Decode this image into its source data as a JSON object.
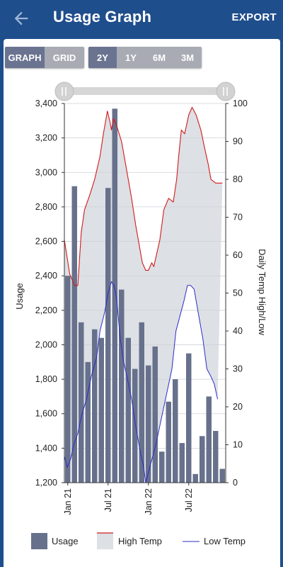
{
  "appbar": {
    "title": "Usage Graph",
    "export_label": "EXPORT",
    "back_icon": "arrow-left-icon"
  },
  "view_toggle": {
    "options": [
      "GRAPH",
      "GRID"
    ],
    "selected": "GRAPH"
  },
  "range_toggle": {
    "options": [
      "2Y",
      "1Y",
      "6M",
      "3M"
    ],
    "selected": "2Y"
  },
  "range_slider": {
    "start_fraction": 0.0,
    "end_fraction": 1.0
  },
  "chart_data": {
    "type": "bar",
    "ylabel": "Usage",
    "y2label": "Daily Temp High/Low",
    "ylim": [
      1200,
      3400
    ],
    "y2lim": [
      0,
      100
    ],
    "yticks": [
      "1,200",
      "1,400",
      "1,600",
      "1,800",
      "2,000",
      "2,200",
      "2,400",
      "2,600",
      "2,800",
      "3,000",
      "3,200",
      "3,400"
    ],
    "y2ticks": [
      "0",
      "10",
      "20",
      "30",
      "40",
      "50",
      "60",
      "70",
      "80",
      "90",
      "100"
    ],
    "xlabels": [
      {
        "label": "Jan 21",
        "x": 0.5
      },
      {
        "label": "Jul 21",
        "x": 6.5
      },
      {
        "label": "Jan 22",
        "x": 12.5
      },
      {
        "label": "Jul 22",
        "x": 18.5
      }
    ],
    "usage": [
      2400,
      2920,
      2130,
      1900,
      2090,
      2040,
      2910,
      3370,
      2320,
      2040,
      1860,
      2130,
      1880,
      1990,
      1380,
      1670,
      1800,
      1430,
      1950,
      1250,
      1470,
      1700,
      1500,
      1280
    ],
    "high_temp": [
      [
        0,
        64
      ],
      [
        0.8,
        55
      ],
      [
        1.5,
        52
      ],
      [
        2,
        52
      ],
      [
        2.5,
        66
      ],
      [
        3,
        72
      ],
      [
        3.8,
        76
      ],
      [
        4.5,
        80
      ],
      [
        5.3,
        86
      ],
      [
        5.8,
        92
      ],
      [
        6.4,
        98
      ],
      [
        6.8,
        95
      ],
      [
        7,
        93
      ],
      [
        7.3,
        96
      ],
      [
        7.8,
        94
      ],
      [
        8.5,
        90
      ],
      [
        9.3,
        82
      ],
      [
        10,
        75
      ],
      [
        10.6,
        68
      ],
      [
        11,
        64
      ],
      [
        11.6,
        58
      ],
      [
        12.1,
        56
      ],
      [
        12.5,
        56
      ],
      [
        13,
        58
      ],
      [
        13.3,
        57
      ],
      [
        14.2,
        64
      ],
      [
        14.8,
        72
      ],
      [
        15.5,
        75
      ],
      [
        16.2,
        74
      ],
      [
        16.7,
        80
      ],
      [
        17,
        86
      ],
      [
        17.4,
        93
      ],
      [
        17.9,
        92
      ],
      [
        18.5,
        97
      ],
      [
        19,
        99
      ],
      [
        19.6,
        97
      ],
      [
        20.3,
        93
      ],
      [
        20.9,
        88
      ],
      [
        21.4,
        84
      ],
      [
        21.8,
        80
      ],
      [
        22.5,
        79
      ],
      [
        23,
        79
      ],
      [
        23.5,
        79
      ]
    ],
    "low_temp": [
      [
        0,
        7
      ],
      [
        0.4,
        4
      ],
      [
        0.9,
        6
      ],
      [
        1.4,
        10
      ],
      [
        2,
        13
      ],
      [
        2.6,
        18
      ],
      [
        3.3,
        22
      ],
      [
        4,
        28
      ],
      [
        4.8,
        33
      ],
      [
        5.3,
        40
      ],
      [
        6,
        45
      ],
      [
        6.5,
        50
      ],
      [
        7,
        53
      ],
      [
        7.4,
        52
      ],
      [
        7.8,
        48
      ],
      [
        8.3,
        38
      ],
      [
        8.8,
        32
      ],
      [
        9.3,
        28
      ],
      [
        10,
        22
      ],
      [
        10.6,
        15
      ],
      [
        11.3,
        8
      ],
      [
        11.8,
        4
      ],
      [
        12.1,
        0
      ],
      [
        12.4,
        2
      ],
      [
        13,
        6
      ],
      [
        13.6,
        10
      ],
      [
        14.2,
        15
      ],
      [
        14.8,
        20
      ],
      [
        15.4,
        25
      ],
      [
        16,
        30
      ],
      [
        16.6,
        40
      ],
      [
        17.2,
        44
      ],
      [
        17.8,
        48
      ],
      [
        18.3,
        52
      ],
      [
        18.8,
        52
      ],
      [
        19.3,
        51
      ],
      [
        19.9,
        45
      ],
      [
        20.6,
        38
      ],
      [
        21.2,
        30
      ],
      [
        21.8,
        28
      ],
      [
        22.3,
        26
      ],
      [
        22.8,
        22
      ]
    ],
    "legend": [
      {
        "name": "Usage",
        "kind": "bar",
        "color": "#67718c"
      },
      {
        "name": "High Temp",
        "kind": "line",
        "color": "#d11a1a"
      },
      {
        "name": "Low Temp",
        "kind": "line",
        "color": "#2b2bc7"
      }
    ],
    "colors": {
      "bar": "#67718c",
      "high": "#d11a1a",
      "low": "#2b2bc7",
      "area": "#dde0e5"
    },
    "legend_position": "bottom",
    "grid": true
  }
}
